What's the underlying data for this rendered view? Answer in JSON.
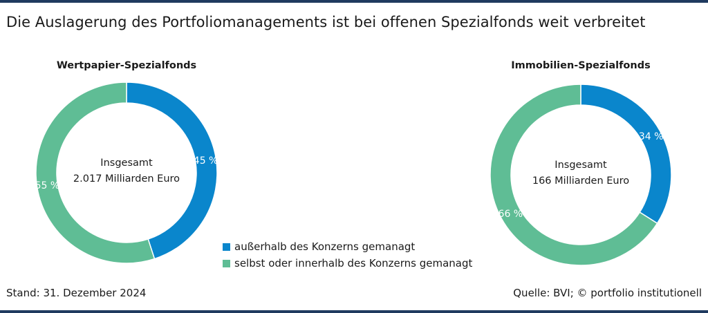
{
  "title": "Die Auslagerung des Portfoliomanagements ist bei offenen Spezialfonds weit verbreitet",
  "colors": {
    "blue": "#0a86cc",
    "green": "#5fbd95",
    "frame": "#1f3a5f"
  },
  "chart_data": [
    {
      "type": "pie",
      "title": "Wertpapier-Spezialfonds",
      "center_label": [
        "Insgesamt",
        "2.017 Milliarden Euro"
      ],
      "slices": [
        {
          "label": "außerhalb des Konzerns gemanagt",
          "value": 45,
          "display": "45 %",
          "color": "#0a86cc"
        },
        {
          "label": "selbst oder innerhalb des Konzerns gemanagt",
          "value": 55,
          "display": "55 %",
          "color": "#5fbd95"
        }
      ]
    },
    {
      "type": "pie",
      "title": "Immobilien-Spezialfonds",
      "center_label": [
        "Insgesamt",
        "166 Milliarden Euro"
      ],
      "slices": [
        {
          "label": "außerhalb des Konzerns gemanagt",
          "value": 34,
          "display": "34 %",
          "color": "#0a86cc"
        },
        {
          "label": "selbst oder innerhalb des Konzerns gemanagt",
          "value": 66,
          "display": "66 %",
          "color": "#5fbd95"
        }
      ]
    }
  ],
  "legend": [
    {
      "label": "außerhalb des Konzerns gemanagt",
      "color": "#0a86cc"
    },
    {
      "label": "selbst oder innerhalb des Konzerns gemanagt",
      "color": "#5fbd95"
    }
  ],
  "footer": {
    "stand": "Stand: 31. Dezember 2024",
    "source": "Quelle: BVI; © portfolio institutionell"
  }
}
